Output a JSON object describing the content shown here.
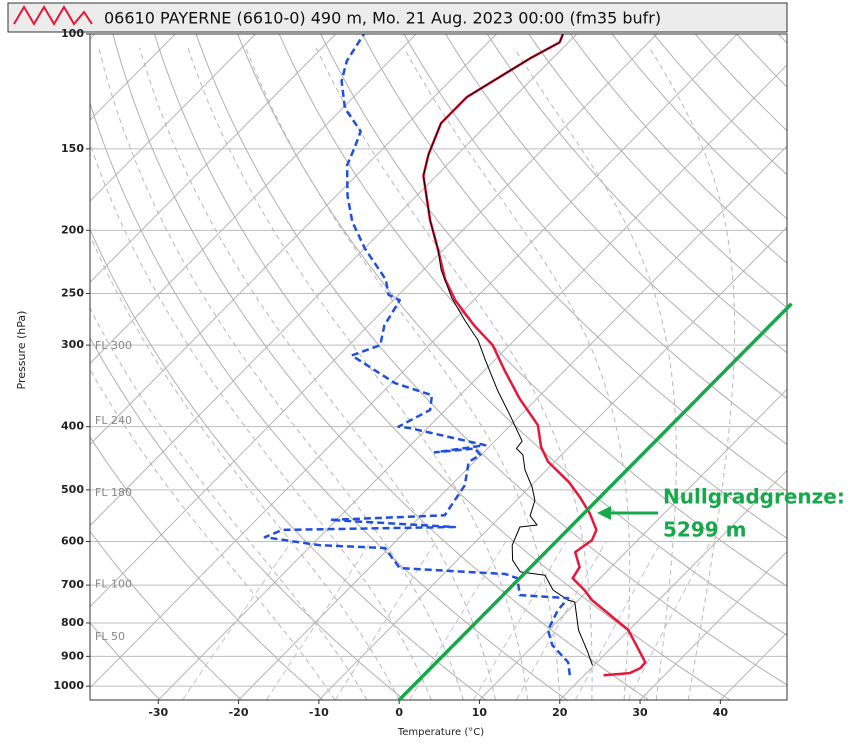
{
  "chart_data": {
    "type": "skew-t",
    "title": "06610 PAYERNE (6610-0) 490 m, Mo. 21 Aug. 2023 00:00 (fm35  bufr)",
    "xlabel": "Temperature (°C)",
    "ylabel": "Pressure (hPa)",
    "yscale": "log",
    "xlim": [
      -38.5,
      48.3
    ],
    "ylim": [
      100,
      1050
    ],
    "xticks": [
      -30,
      -20,
      -10,
      0,
      10,
      20,
      30,
      40
    ],
    "yticks": [
      100,
      150,
      200,
      250,
      300,
      400,
      500,
      600,
      700,
      800,
      900,
      1000
    ],
    "grid": true,
    "series": [
      {
        "color": "#e8173a",
        "line_style": "solid",
        "x": [
          22.4,
          25.4,
          26.1,
          26.0,
          19.9,
          11.7,
          9.5,
          6.6,
          6.1,
          3.7,
          4.3,
          3.6,
          0.7,
          -2.5,
          -5.8,
          -10.8,
          -13.5,
          -16.6,
          -22.2,
          -27.5,
          -32.1,
          -36.8,
          -42.3,
          -46.1,
          -50.7,
          -55.3,
          -61.6,
          -63.6,
          -65.9,
          -65.9,
          -62.8,
          -61.1,
          -61.7
        ],
        "values": [
          962,
          955,
          938,
          919,
          820,
          738,
          712,
          683,
          657,
          623,
          597,
          576,
          543,
          513,
          486,
          453,
          430,
          398,
          362,
          328,
          300,
          280,
          256,
          238,
          214,
          193,
          165,
          153,
          137,
          125,
          109,
          103,
          100
        ]
      },
      {
        "color": "#000000",
        "line_style": "thin",
        "x": [
          19.8,
          17.6,
          13.7,
          9.8,
          8.7,
          5.6,
          2.8,
          -0.7,
          -3.1,
          -5.0,
          -6.3,
          -4.4,
          -6.4,
          -7.7,
          -9.7,
          -12.7,
          -14.8,
          -16.4,
          -16.6,
          -21.2,
          -25.9,
          -31.2,
          -34.5,
          -38.6,
          -43.0,
          -47.8,
          -50.7,
          -55.3,
          -61.6,
          -63.6,
          -65.9,
          -65.9,
          -62.8,
          -61.1,
          -61.7
        ],
        "values": [
          929,
          887,
          820,
          743,
          738,
          712,
          676,
          668,
          641,
          608,
          570,
          566,
          548,
          519,
          495,
          466,
          442,
          432,
          421,
          385,
          352,
          316,
          295,
          275,
          254,
          230,
          214,
          193,
          165,
          153,
          137,
          125,
          109,
          103,
          100
        ]
      },
      {
        "color": "#1f4fe0",
        "line_style": "dashed",
        "x": [
          18.2,
          16.4,
          12.3,
          9.9,
          8.7,
          8.5,
          2.1,
          -0.3,
          -2.3,
          -16.2,
          -20.5,
          -29.0,
          -36.8,
          -35.5,
          -14.4,
          -30.8,
          -17.1,
          -18.3,
          -20.7,
          -20.1,
          -21.6,
          -26.1,
          -20.7,
          -32.2,
          -33.8,
          -31.9,
          -33.5,
          -39.6,
          -48.4,
          -46.1,
          -48.0,
          -49.2,
          -51.3,
          -53.5,
          -60.0,
          -64.8,
          -68.6,
          -72.4,
          -73.7,
          -74.9,
          -79.7,
          -83.5,
          -85.3,
          -86.5
        ],
        "values": [
          962,
          919,
          865,
          820,
          765,
          733,
          725,
          683,
          673,
          659,
          614,
          608,
          591,
          576,
          570,
          556,
          547,
          492,
          453,
          442,
          432,
          438,
          427,
          402,
          400,
          377,
          358,
          343,
          311,
          300,
          280,
          256,
          251,
          238,
          213,
          194,
          177,
          159,
          149,
          141,
          130,
          118,
          110,
          100
        ]
      }
    ],
    "flight_levels": [
      {
        "value": 301,
        "label": "FL 300"
      },
      {
        "value": 392,
        "label": "FL 240"
      },
      {
        "value": 506,
        "label": "FL 180"
      },
      {
        "value": 698,
        "label": "FL 100"
      },
      {
        "value": 841,
        "label": "FL 50"
      }
    ],
    "freezing_level": {
      "temperature": 0,
      "color": "#17a84a",
      "label": [
        "Nullgradgrenze:",
        "5299 m"
      ]
    }
  }
}
